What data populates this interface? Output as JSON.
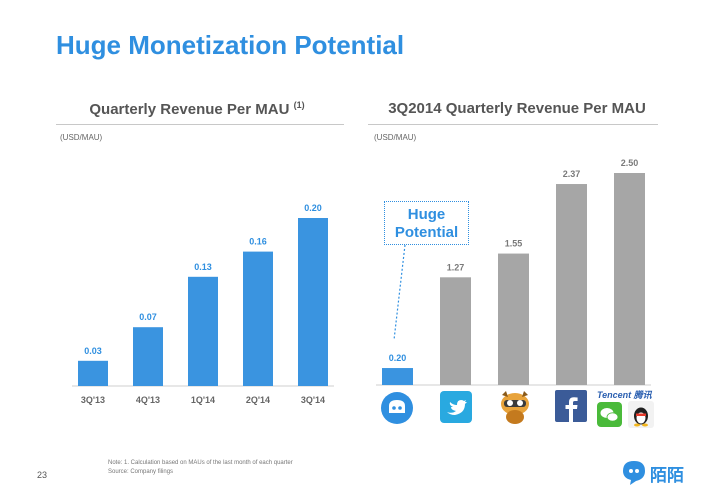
{
  "page": {
    "title": "Huge Monetization Potential",
    "page_number": "23",
    "note_line1": "Note: 1. Calculation based on MAUs of the last month of each quarter",
    "note_line2": "Source: Company filings",
    "brand_name": "陌陌"
  },
  "colors": {
    "blue": "#3a94e0",
    "gray": "#a6a6a6",
    "title_blue": "#2f8fe0"
  },
  "callout": {
    "line1": "Huge",
    "line2": "Potential"
  },
  "tencent_label": "Tencent 腾讯",
  "chart_data": [
    {
      "type": "bar",
      "title": "Quarterly Revenue Per MAU",
      "title_note": "(1)",
      "ylabel": "(USD/MAU)",
      "categories": [
        "3Q'13",
        "4Q'13",
        "1Q'14",
        "2Q'14",
        "3Q'14"
      ],
      "values": [
        0.03,
        0.07,
        0.13,
        0.16,
        0.2
      ],
      "labels": [
        "0.03",
        "0.07",
        "0.13",
        "0.16",
        "0.20"
      ],
      "ylim": [
        0,
        0.2
      ],
      "color": "#3a94e0"
    },
    {
      "type": "bar",
      "title": "3Q2014 Quarterly Revenue Per MAU",
      "ylabel": "(USD/MAU)",
      "categories": [
        "Momo",
        "Twitter",
        "YY",
        "Facebook",
        "Tencent"
      ],
      "values": [
        0.2,
        1.27,
        1.55,
        2.37,
        2.5
      ],
      "labels": [
        "0.20",
        "1.27",
        "1.55",
        "2.37",
        "2.50"
      ],
      "ylim": [
        0,
        2.5
      ],
      "colors": [
        "#3a94e0",
        "#a6a6a6",
        "#a6a6a6",
        "#a6a6a6",
        "#a6a6a6"
      ]
    }
  ]
}
